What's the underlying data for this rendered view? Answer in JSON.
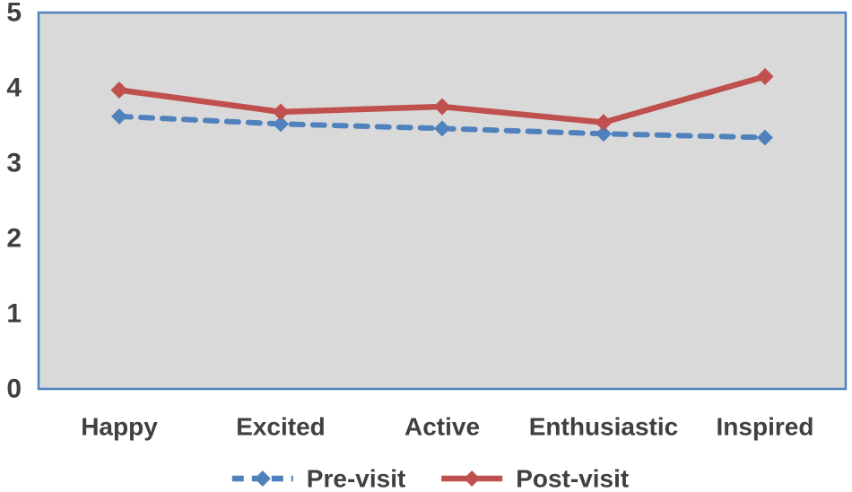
{
  "chart_data": {
    "type": "line",
    "title": "",
    "categories": [
      "Happy",
      "Excited",
      "Active",
      "Enthusiastic",
      "Inspired"
    ],
    "series": [
      {
        "name": "Pre-visit",
        "values": [
          3.62,
          3.52,
          3.46,
          3.39,
          3.34
        ],
        "color": "#4F81BD",
        "line_style": "dashed",
        "marker": "diamond"
      },
      {
        "name": "Post-visit",
        "values": [
          3.97,
          3.68,
          3.75,
          3.54,
          4.15
        ],
        "color": "#C0504D",
        "line_style": "solid",
        "marker": "diamond"
      }
    ],
    "y_axis": {
      "min": 0,
      "max": 5,
      "tick_interval": 1,
      "tick_labels": [
        "0",
        "1",
        "2",
        "3",
        "4",
        "5"
      ]
    },
    "x_axis": {
      "label": ""
    },
    "grid": false,
    "legend_position": "bottom",
    "colors": {
      "plot_background": "#D9D9D9",
      "plot_border": "#4F81BD",
      "text": "#404040",
      "page_background": "#FFFFFF"
    }
  }
}
